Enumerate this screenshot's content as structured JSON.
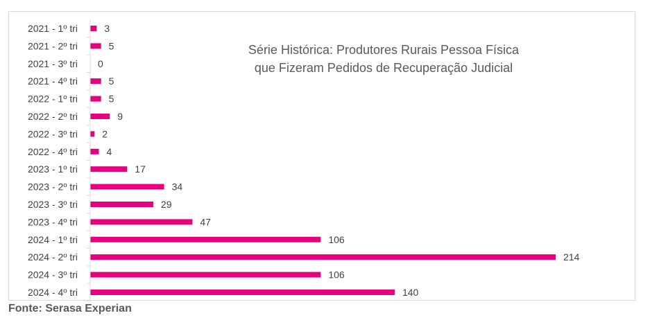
{
  "chart_data": {
    "type": "bar",
    "orientation": "horizontal",
    "title": "Série Histórica: Produtores Rurais Pessoa Física que Fizeram Pedidos de Recuperação Judicial",
    "categories": [
      "2021 - 1º tri",
      "2021 - 2º tri",
      "2021 - 3º tri",
      "2021 - 4º tri",
      "2022 - 1º tri",
      "2022 - 2º tri",
      "2022 - 3º tri",
      "2022 - 4º tri",
      "2023 - 1º tri",
      "2023 - 2º tri",
      "2023 - 3º tri",
      "2023 - 4º tri",
      "2024 - 1º tri",
      "2024 - 2º tri",
      "2024 - 3º tri",
      "2024 - 4º tri"
    ],
    "values": [
      3,
      5,
      0,
      5,
      5,
      9,
      2,
      4,
      17,
      34,
      29,
      47,
      106,
      214,
      106,
      140
    ],
    "xlabel": "",
    "ylabel": "",
    "xlim": [
      0,
      214
    ],
    "grid": false,
    "legend": "none",
    "data_labels": true,
    "bar_color": "#e6007e"
  },
  "source": "Fonte: Serasa Experian"
}
